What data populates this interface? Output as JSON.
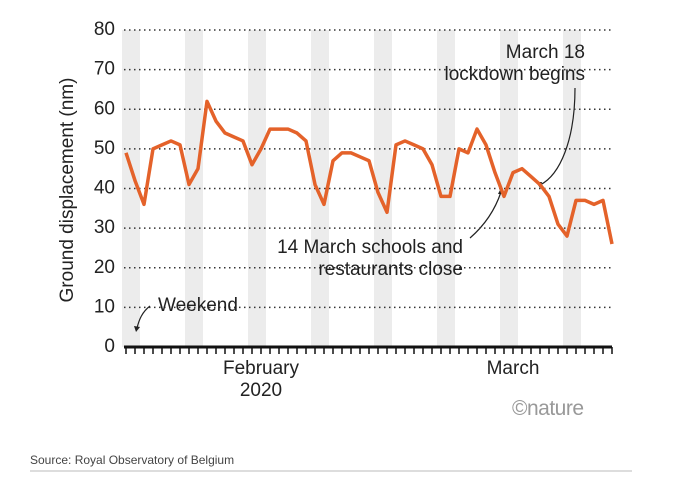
{
  "chart_data": {
    "type": "line",
    "ylabel": "Ground displacement (nm)",
    "ylim": [
      0,
      80
    ],
    "yticks": [
      0,
      10,
      20,
      30,
      40,
      50,
      60,
      70,
      80
    ],
    "grid": true,
    "categories": [
      null,
      null,
      null,
      null,
      null,
      null,
      null,
      null,
      null,
      null,
      null,
      null,
      null,
      null,
      null,
      "February\n2020",
      null,
      null,
      null,
      null,
      null,
      null,
      null,
      null,
      null,
      null,
      null,
      null,
      null,
      null,
      null,
      null,
      null,
      null,
      null,
      null,
      null,
      null,
      null,
      null,
      null,
      null,
      null,
      "March",
      null,
      null,
      null,
      null,
      null,
      null,
      null,
      null,
      null,
      null,
      null
    ],
    "series": [
      {
        "color": "#e4622a",
        "values": [
          49,
          42,
          36,
          50,
          51,
          52,
          51,
          41,
          45,
          62,
          57,
          54,
          53,
          52,
          46,
          50,
          55,
          55,
          55,
          54,
          52,
          41,
          36,
          47,
          49,
          49,
          48,
          47,
          39,
          34,
          51,
          52,
          51,
          50,
          46,
          38,
          38,
          50,
          49,
          55,
          51,
          44,
          38,
          44,
          45,
          43,
          41,
          38,
          31,
          28,
          37,
          37,
          36,
          37,
          26
        ]
      }
    ],
    "annotations": [
      "March 18\nlockdown begins",
      "14 March schools and\nrestaurants close",
      "Weekend"
    ],
    "credit": "©nature",
    "source": "Source: Royal Observatory of Belgium"
  }
}
